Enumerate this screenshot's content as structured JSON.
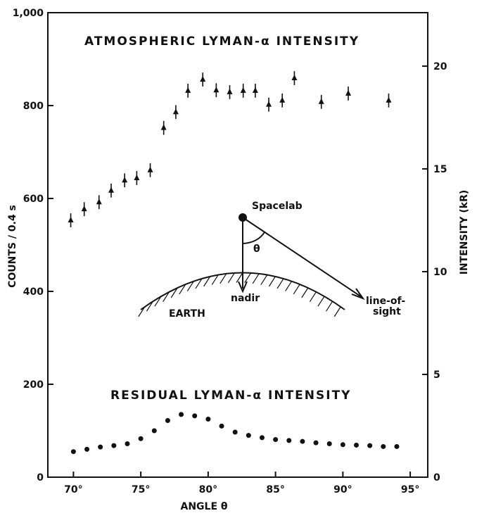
{
  "chart_data": {
    "type": "scatter",
    "series": [
      {
        "name": "ATMOSPHERIC LYMAN-α INTENSITY",
        "color": "#111",
        "marker": "error-bar",
        "x": [
          69.8,
          70.8,
          71.9,
          72.8,
          73.8,
          74.7,
          75.7,
          76.7,
          77.6,
          78.5,
          79.6,
          80.6,
          81.6,
          82.6,
          83.5,
          84.5,
          85.5,
          86.4,
          88.4,
          90.4,
          93.4
        ],
        "values": [
          553,
          577,
          592,
          617,
          639,
          644,
          661,
          752,
          786,
          832,
          856,
          833,
          829,
          832,
          832,
          802,
          811,
          859,
          808,
          826,
          811
        ],
        "errors": [
          15,
          15,
          15,
          15,
          15,
          15,
          15,
          15,
          15,
          15,
          15,
          15,
          15,
          15,
          15,
          15,
          15,
          15,
          15,
          15,
          15
        ]
      },
      {
        "name": "RESIDUAL LYMAN-α INTENSITY",
        "color": "#111",
        "marker": "dot",
        "x": [
          70,
          71,
          72,
          73,
          74,
          75,
          76,
          77,
          78,
          79,
          80,
          81,
          82,
          83,
          84,
          85,
          86,
          87,
          88,
          89,
          90,
          91,
          92,
          93,
          94
        ],
        "values": [
          55,
          60,
          65,
          68,
          72,
          83,
          100,
          122,
          135,
          132,
          125,
          110,
          97,
          90,
          85,
          81,
          79,
          77,
          74,
          72,
          70,
          69,
          68,
          66,
          66
        ]
      }
    ],
    "xlabel": "ANGLE θ",
    "ylabel": "COUNTS / 0.4 s",
    "y2label": "INTENSITY (kR)",
    "xlim": [
      68.1,
      96.3
    ],
    "xticks": [
      {
        "value": 70,
        "label": "70°"
      },
      {
        "value": 75,
        "label": "75°"
      },
      {
        "value": 80,
        "label": "80°"
      },
      {
        "value": 85,
        "label": "85°"
      },
      {
        "value": 90,
        "label": "90°"
      },
      {
        "value": 95,
        "label": "95°"
      }
    ],
    "ylim": [
      0,
      1000
    ],
    "yticks": [
      0,
      200,
      400,
      600,
      800,
      {
        "value": 1000,
        "label": "1,000"
      }
    ],
    "y2lim": [
      0,
      22.6
    ],
    "y2ticks": [
      0,
      5,
      10,
      15,
      20
    ],
    "diagram": {
      "spacecraft": "Spacelab",
      "angle": "θ",
      "nadir": "nadir",
      "earth": "EARTH",
      "line_of_sight": [
        "line-of-",
        "sight"
      ]
    }
  }
}
